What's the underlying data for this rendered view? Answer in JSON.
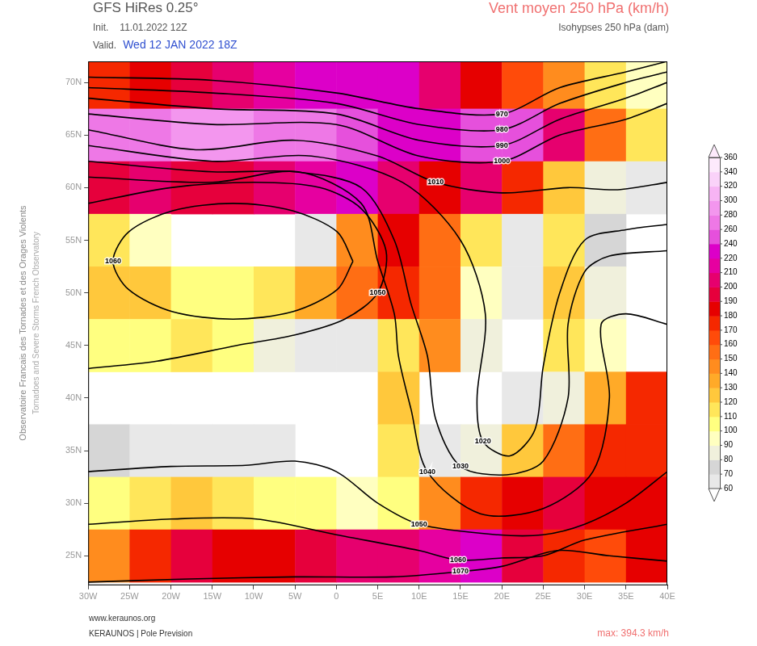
{
  "chart_data": {
    "type": "heatmap",
    "title": "GFS HiRes 0.25°",
    "subtitle": "Vent moyen 250 hPa (km/h)",
    "annotations": {
      "init_label": "Init.",
      "init": "11.01.2022 12Z",
      "valid_label": "Valid.",
      "valid": "Wed 12 JAN 2022 18Z",
      "contour_title": "Isohypses 250 hPa (dam)",
      "site": "www.keraunos.org",
      "credit": "KERAUNOS | Pole Prevision",
      "max": "max: 394.3 km/h",
      "side_fr": "Observatoire Francais des Tornades et des Orages Violents",
      "side_en": "Tornadoes and Severe Storms French Observatory"
    },
    "xlim": [
      -30,
      40
    ],
    "xticks": [
      {
        "value": -30,
        "label": "30W"
      },
      {
        "value": -25,
        "label": "25W"
      },
      {
        "value": -20,
        "label": "20W"
      },
      {
        "value": -15,
        "label": "15W"
      },
      {
        "value": -10,
        "label": "10W"
      },
      {
        "value": -5,
        "label": "5W"
      },
      0,
      {
        "value": 5,
        "label": "5E"
      },
      {
        "value": 10,
        "label": "10E"
      },
      {
        "value": 15,
        "label": "15E"
      },
      {
        "value": 20,
        "label": "20E"
      },
      {
        "value": 25,
        "label": "25E"
      },
      {
        "value": 30,
        "label": "30E"
      },
      {
        "value": 35,
        "label": "35E"
      },
      {
        "value": 40,
        "label": "40E"
      }
    ],
    "ylim": [
      22.2,
      72
    ],
    "yticks": [
      {
        "value": 25,
        "label": "25N"
      },
      {
        "value": 30,
        "label": "30N"
      },
      {
        "value": 35,
        "label": "35N"
      },
      {
        "value": 40,
        "label": "40N"
      },
      {
        "value": 45,
        "label": "45N"
      },
      {
        "value": 50,
        "label": "50N"
      },
      {
        "value": 55,
        "label": "55N"
      },
      {
        "value": 60,
        "label": "60N"
      },
      {
        "value": 65,
        "label": "65N"
      },
      {
        "value": 70,
        "label": "70N"
      }
    ],
    "grid": false,
    "x": [
      -27.5,
      -22.5,
      -17.5,
      -12.5,
      -7.5,
      -2.5,
      2.5,
      7.5,
      12.5,
      17.5,
      22.5,
      27.5,
      32.5,
      37.5
    ],
    "y": [
      70,
      65,
      60,
      55,
      50,
      45,
      40,
      35,
      30,
      25
    ],
    "cells": [
      [
        170,
        180,
        190,
        200,
        210,
        220,
        220,
        220,
        200,
        180,
        160,
        140,
        110,
        90
      ],
      [
        260,
        270,
        280,
        280,
        270,
        260,
        250,
        230,
        230,
        250,
        240,
        200,
        150,
        110
      ],
      [
        190,
        200,
        190,
        190,
        200,
        210,
        220,
        200,
        180,
        200,
        170,
        120,
        80,
        60
      ],
      [
        110,
        90,
        50,
        40,
        40,
        60,
        140,
        180,
        150,
        110,
        60,
        110,
        70,
        40
      ],
      [
        120,
        120,
        100,
        100,
        110,
        130,
        150,
        170,
        150,
        90,
        60,
        120,
        80,
        40
      ],
      [
        100,
        100,
        110,
        100,
        80,
        60,
        60,
        110,
        140,
        80,
        50,
        110,
        90,
        50
      ],
      [
        40,
        40,
        40,
        40,
        40,
        40,
        50,
        120,
        40,
        50,
        60,
        80,
        130,
        170
      ],
      [
        70,
        60,
        60,
        60,
        60,
        50,
        40,
        110,
        60,
        80,
        120,
        150,
        170,
        170
      ],
      [
        100,
        110,
        120,
        110,
        100,
        100,
        90,
        100,
        140,
        170,
        180,
        190,
        180,
        180
      ],
      [
        140,
        170,
        190,
        180,
        180,
        190,
        200,
        200,
        210,
        220,
        190,
        170,
        160,
        180
      ]
    ],
    "colorbar": {
      "levels": [
        60,
        70,
        80,
        90,
        100,
        110,
        120,
        130,
        140,
        150,
        160,
        170,
        180,
        190,
        200,
        210,
        220,
        240,
        260,
        280,
        300,
        320,
        340,
        360
      ],
      "colors": [
        "#e8e8e8",
        "#d6d6d6",
        "#f0f0dc",
        "#ffffc0",
        "#ffff80",
        "#ffe65a",
        "#ffc83c",
        "#ffaa28",
        "#ff8c1e",
        "#ff6e14",
        "#ff4b0a",
        "#f52800",
        "#e60000",
        "#e6003c",
        "#e6006e",
        "#e600a0",
        "#dc00c8",
        "#e650dc",
        "#ee78e6",
        "#f396ee",
        "#f7b4f4",
        "#fad2f9",
        "#fdeafc"
      ]
    },
    "contours": [
      {
        "label": "970",
        "lon": [
          -30,
          -15,
          0,
          10,
          20,
          27,
          35,
          40
        ],
        "lat": [
          70.5,
          70.2,
          69,
          67.5,
          67,
          69.5,
          71,
          72
        ]
      },
      {
        "label": "980",
        "lon": [
          -30,
          -15,
          0,
          10,
          20,
          27,
          35,
          40
        ],
        "lat": [
          69.5,
          69,
          68,
          66,
          65.5,
          68,
          70,
          71
        ]
      },
      {
        "label": "990",
        "lon": [
          -30,
          -15,
          0,
          10,
          20,
          27,
          35,
          40
        ],
        "lat": [
          68.5,
          67.5,
          67,
          64.5,
          64,
          66.5,
          68.5,
          70
        ]
      },
      {
        "label": "1000",
        "lon": [
          -30,
          -15,
          0,
          10,
          20,
          27,
          35,
          40
        ],
        "lat": [
          67,
          66,
          66,
          63,
          62.5,
          65,
          66.5,
          68
        ]
      },
      {
        "label": "1010",
        "lon": [
          -30,
          -17,
          -5,
          5,
          12,
          20,
          28,
          34,
          40
        ],
        "lat": [
          65.5,
          63.6,
          64.5,
          63,
          60.5,
          59.5,
          60,
          59.8,
          60.5
        ]
      },
      {
        "label": "1020",
        "lon": [
          -30,
          -15,
          -3,
          8,
          15,
          18,
          17,
          17.7,
          21,
          24,
          25,
          27,
          30,
          35,
          40
        ],
        "lat": [
          64,
          62.5,
          63,
          60.5,
          55,
          48,
          40,
          35.9,
          34.5,
          37,
          43,
          50,
          55,
          56,
          56.5
        ]
      },
      {
        "label": "1030",
        "lon": [
          -30,
          -15,
          -5,
          3,
          7,
          9,
          11,
          12,
          15,
          20.6,
          25,
          28,
          28,
          30,
          33,
          40
        ],
        "lat": [
          62.5,
          61.5,
          61.5,
          60,
          55,
          49,
          44,
          38,
          33.5,
          32.7,
          34,
          40,
          47,
          52,
          53.5,
          54
        ]
      },
      {
        "label": "1040",
        "lon": [
          -30,
          -15,
          -4.6,
          3,
          5,
          7,
          7.5,
          9,
          11,
          17.4,
          25,
          31,
          33,
          32,
          35,
          40
        ],
        "lat": [
          61,
          60.5,
          61.5,
          58.5,
          53,
          48,
          44,
          39,
          33,
          29,
          29.5,
          33,
          40,
          47,
          48,
          47
        ]
      },
      {
        "label": "1050",
        "lon": [
          -30,
          -20,
          -10,
          -2,
          3,
          6,
          5,
          1,
          -5,
          -12,
          -21.7,
          -30
        ],
        "lat": [
          58.5,
          60,
          60.5,
          60,
          58,
          54,
          50,
          47.5,
          46,
          45,
          43.5,
          42.8
        ]
      },
      {
        "label": "1050",
        "lon": [
          -30,
          -20,
          -11,
          -5,
          0,
          5,
          10,
          19.5,
          25,
          30,
          35,
          40
        ],
        "lat": [
          33,
          33.5,
          33.6,
          34,
          33,
          30,
          28,
          27,
          27,
          28,
          30,
          33
        ]
      },
      {
        "label": "1060",
        "lon": [
          2,
          0.1,
          -5.3,
          -12.5,
          -19.8,
          -25.1,
          -27,
          -25.1,
          -19.8,
          -12.5,
          -5.3,
          0.1,
          2
        ],
        "lat": [
          53,
          55.8,
          57.8,
          58.5,
          57.8,
          55.8,
          53,
          50.3,
          48.2,
          47.5,
          48.2,
          50.3,
          53
        ]
      },
      {
        "label": "1060",
        "lon": [
          -30,
          -20,
          -9.7,
          0,
          10,
          14.7,
          20,
          25,
          30,
          40
        ],
        "lat": [
          28,
          28.5,
          28.5,
          27,
          25.5,
          24.6,
          24.8,
          25,
          26.5,
          28
        ]
      },
      {
        "label": "1070",
        "lon": [
          -30,
          -17.8,
          -5,
          6.7,
          15,
          20,
          26.7,
          33,
          40
        ],
        "lat": [
          22.5,
          22.8,
          23,
          23,
          23.5,
          24,
          25.5,
          25,
          24.5
        ]
      }
    ]
  }
}
